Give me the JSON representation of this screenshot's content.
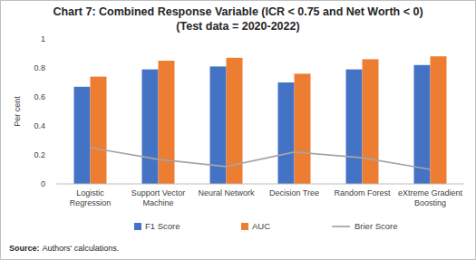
{
  "chart_data": {
    "type": "bar",
    "title": "Chart 7: Combined Response Variable (ICR < 0.75 and Net Worth < 0)",
    "subtitle": "(Test data = 2020-2022)",
    "y_label": "Per cent",
    "categories": [
      "Logistic Regression",
      "Support Vector Machine",
      "Neural Network",
      "Decision Tree",
      "Random Forest",
      "eXtreme Gradient Boosting"
    ],
    "series": [
      {
        "name": "F1 Score",
        "color": "#4472c4",
        "type": "bar",
        "values": [
          0.67,
          0.79,
          0.81,
          0.7,
          0.79,
          0.82
        ]
      },
      {
        "name": "AUC",
        "color": "#ed7d31",
        "type": "bar",
        "values": [
          0.74,
          0.85,
          0.87,
          0.76,
          0.86,
          0.88
        ]
      },
      {
        "name": "Brier Score",
        "color": "#a5a5a5",
        "type": "line",
        "values": [
          0.25,
          0.17,
          0.12,
          0.22,
          0.18,
          0.1
        ]
      }
    ],
    "ylim": [
      0,
      1
    ],
    "yticks": [
      0,
      0.2,
      0.4,
      0.6,
      0.8,
      1
    ],
    "grid": false,
    "legend": "bottom",
    "source_label": "Source:",
    "source": "Authors' calculations."
  }
}
